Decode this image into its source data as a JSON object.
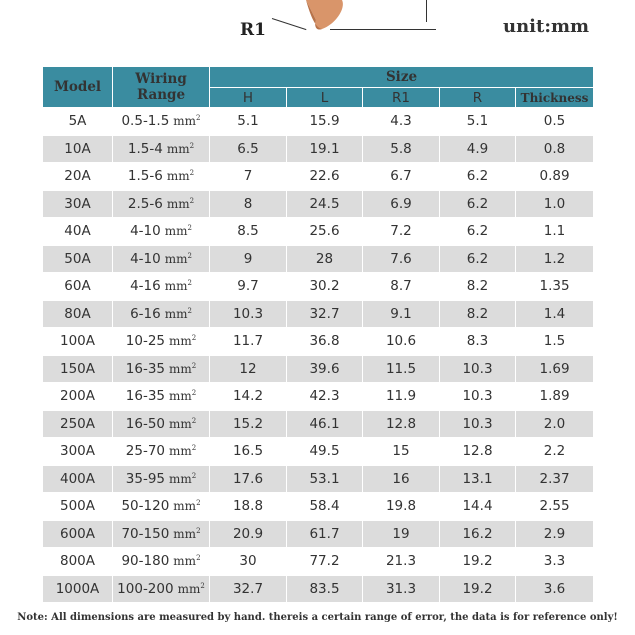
{
  "header": {
    "diagram_label": "R1",
    "unit_label": "unit:mm"
  },
  "table": {
    "headers": {
      "model": "Model",
      "wiring_range": "Wiring Range",
      "size": "Size",
      "h": "H",
      "l": "L",
      "r1": "R1",
      "r": "R",
      "thickness": "Thickness"
    },
    "unit_suffix": "mm",
    "unit_exp": "2",
    "rows": [
      {
        "model": "5A",
        "wiring": "0.5-1.5",
        "h": "5.1",
        "l": "15.9",
        "r1": "4.3",
        "r": "5.1",
        "thickness": "0.5"
      },
      {
        "model": "10A",
        "wiring": "1.5-4",
        "h": "6.5",
        "l": "19.1",
        "r1": "5.8",
        "r": "4.9",
        "thickness": "0.8"
      },
      {
        "model": "20A",
        "wiring": "1.5-6",
        "h": "7",
        "l": "22.6",
        "r1": "6.7",
        "r": "6.2",
        "thickness": "0.89"
      },
      {
        "model": "30A",
        "wiring": "2.5-6",
        "h": "8",
        "l": "24.5",
        "r1": "6.9",
        "r": "6.2",
        "thickness": "1.0"
      },
      {
        "model": "40A",
        "wiring": "4-10",
        "h": "8.5",
        "l": "25.6",
        "r1": "7.2",
        "r": "6.2",
        "thickness": "1.1"
      },
      {
        "model": "50A",
        "wiring": "4-10",
        "h": "9",
        "l": "28",
        "r1": "7.6",
        "r": "6.2",
        "thickness": "1.2"
      },
      {
        "model": "60A",
        "wiring": "4-16",
        "h": "9.7",
        "l": "30.2",
        "r1": "8.7",
        "r": "8.2",
        "thickness": "1.35"
      },
      {
        "model": "80A",
        "wiring": "6-16",
        "h": "10.3",
        "l": "32.7",
        "r1": "9.1",
        "r": "8.2",
        "thickness": "1.4"
      },
      {
        "model": "100A",
        "wiring": "10-25",
        "h": "11.7",
        "l": "36.8",
        "r1": "10.6",
        "r": "8.3",
        "thickness": "1.5"
      },
      {
        "model": "150A",
        "wiring": "16-35",
        "h": "12",
        "l": "39.6",
        "r1": "11.5",
        "r": "10.3",
        "thickness": "1.69"
      },
      {
        "model": "200A",
        "wiring": "16-35",
        "h": "14.2",
        "l": "42.3",
        "r1": "11.9",
        "r": "10.3",
        "thickness": "1.89"
      },
      {
        "model": "250A",
        "wiring": "16-50",
        "h": "15.2",
        "l": "46.1",
        "r1": "12.8",
        "r": "10.3",
        "thickness": "2.0"
      },
      {
        "model": "300A",
        "wiring": "25-70",
        "h": "16.5",
        "l": "49.5",
        "r1": "15",
        "r": "12.8",
        "thickness": "2.2"
      },
      {
        "model": "400A",
        "wiring": "35-95",
        "h": "17.6",
        "l": "53.1",
        "r1": "16",
        "r": "13.1",
        "thickness": "2.37"
      },
      {
        "model": "500A",
        "wiring": "50-120",
        "h": "18.8",
        "l": "58.4",
        "r1": "19.8",
        "r": "14.4",
        "thickness": "2.55"
      },
      {
        "model": "600A",
        "wiring": "70-150",
        "h": "20.9",
        "l": "61.7",
        "r1": "19",
        "r": "16.2",
        "thickness": "2.9"
      },
      {
        "model": "800A",
        "wiring": "90-180",
        "h": "30",
        "l": "77.2",
        "r1": "21.3",
        "r": "19.2",
        "thickness": "3.3"
      },
      {
        "model": "1000A",
        "wiring": "100-200",
        "h": "32.7",
        "l": "83.5",
        "r1": "31.3",
        "r": "19.2",
        "thickness": "3.6"
      }
    ]
  },
  "footer": {
    "note": "Note: All dimensions are measured by hand. thereis a certain range of error, the data is for reference only!"
  },
  "colors": {
    "header_bg": "#3a8ca0",
    "row_alt_bg": "#dcdcdc",
    "lug_copper": "#d9956a"
  }
}
